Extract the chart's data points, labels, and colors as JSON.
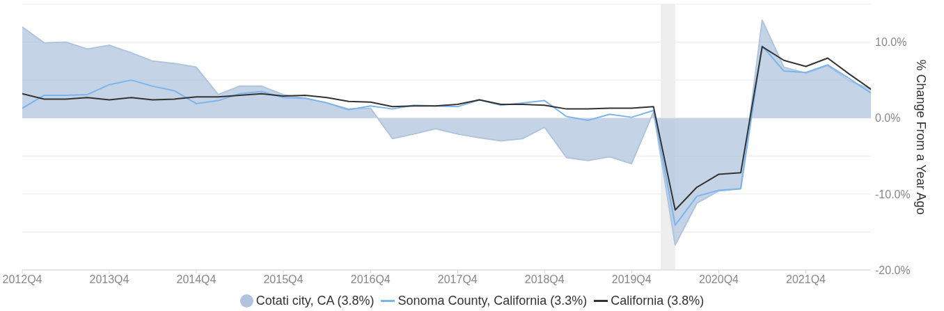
{
  "chart_data": {
    "type": "line",
    "ylabel": "% Change From a Year Ago",
    "x": [
      "2012-10",
      "2013-01",
      "2013-04",
      "2013-07",
      "2013-10",
      "2014-01",
      "2014-04",
      "2014-07",
      "2014-10",
      "2015-01",
      "2015-04",
      "2015-07",
      "2015-10",
      "2016-01",
      "2016-04",
      "2016-07",
      "2016-10",
      "2017-01",
      "2017-04",
      "2017-07",
      "2017-10",
      "2018-01",
      "2018-04",
      "2018-07",
      "2018-10",
      "2019-01",
      "2019-04",
      "2019-07",
      "2019-10",
      "2020-01",
      "2020-04",
      "2020-07",
      "2020-10",
      "2021-01",
      "2021-04",
      "2021-07",
      "2021-10",
      "2022-01",
      "2022-04",
      "2022-07"
    ],
    "series": [
      {
        "name": "Cotati city, CA (3.8%)",
        "type": "area",
        "color": "#b0c4de",
        "values": [
          12.0,
          9.9,
          10.0,
          9.1,
          9.6,
          8.6,
          7.5,
          7.2,
          6.7,
          3.1,
          4.2,
          4.2,
          3.1,
          2.6,
          2.0,
          1.2,
          1.3,
          -2.7,
          -2.1,
          -1.4,
          -2.1,
          -2.6,
          -3.0,
          -2.7,
          -1.2,
          -5.2,
          -5.6,
          -5.1,
          -6.0,
          0.8,
          -16.7,
          -11.2,
          -9.6,
          -9.3,
          12.9,
          6.7,
          5.9,
          6.9,
          4.9,
          3.8
        ]
      },
      {
        "name": "Sonoma County, California (3.3%)",
        "type": "line",
        "color": "#7cb5ec",
        "values": [
          1.3,
          3.0,
          3.0,
          3.1,
          4.4,
          5.0,
          4.2,
          3.6,
          1.9,
          2.3,
          3.2,
          3.5,
          2.7,
          2.6,
          2.0,
          1.1,
          1.6,
          1.2,
          1.7,
          1.6,
          1.5,
          2.4,
          1.7,
          2.0,
          2.3,
          0.2,
          -0.3,
          0.5,
          0.1,
          1.0,
          -14.1,
          -10.3,
          -9.5,
          -9.3,
          9.5,
          6.2,
          6.0,
          7.0,
          5.2,
          3.3
        ]
      },
      {
        "name": "California (3.8%)",
        "type": "line",
        "color": "#333333",
        "values": [
          3.2,
          2.5,
          2.5,
          2.7,
          2.4,
          2.7,
          2.4,
          2.5,
          2.8,
          2.8,
          3.0,
          3.2,
          2.9,
          3.0,
          2.7,
          2.2,
          2.1,
          1.5,
          1.6,
          1.6,
          1.8,
          2.4,
          1.8,
          1.8,
          1.7,
          1.2,
          1.2,
          1.3,
          1.3,
          1.5,
          -12.1,
          -9.1,
          -7.4,
          -7.2,
          9.4,
          7.6,
          6.8,
          7.9,
          5.8,
          3.8
        ]
      }
    ],
    "xlim": [
      "2012-10",
      "2022-07"
    ],
    "xticks": [
      {
        "value": "2012-10",
        "label": "2012Q4"
      },
      {
        "value": "2013-10",
        "label": "2013Q4"
      },
      {
        "value": "2014-10",
        "label": "2014Q4"
      },
      {
        "value": "2015-10",
        "label": "2015Q4"
      },
      {
        "value": "2016-10",
        "label": "2016Q4"
      },
      {
        "value": "2017-10",
        "label": "2017Q4"
      },
      {
        "value": "2018-10",
        "label": "2018Q4"
      },
      {
        "value": "2019-10",
        "label": "2019Q4"
      },
      {
        "value": "2020-10",
        "label": "2020Q4"
      },
      {
        "value": "2021-10",
        "label": "2021Q4"
      }
    ],
    "ylim": [
      -20,
      15
    ],
    "yticks": [
      {
        "value": -20,
        "label": "-20.0%"
      },
      {
        "value": -15,
        "label": null
      },
      {
        "value": -10,
        "label": "-10.0%"
      },
      {
        "value": -5,
        "label": null
      },
      {
        "value": 0,
        "label": "0.0%"
      },
      {
        "value": 5,
        "label": null
      },
      {
        "value": 10,
        "label": "10.0%"
      },
      {
        "value": 15,
        "label": null
      }
    ],
    "bands": [
      {
        "axis": "x",
        "from": "2020-02",
        "to": "2020-04",
        "color": "#eeeeee"
      }
    ],
    "grid": "y",
    "legend": "bottom"
  }
}
